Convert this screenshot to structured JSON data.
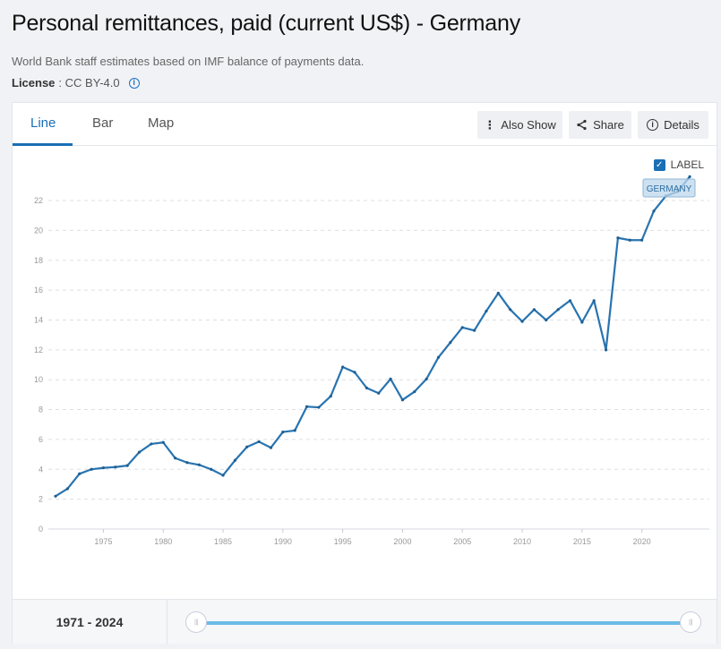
{
  "header": {
    "title": "Personal remittances, paid (current US$) - Germany",
    "source": "World Bank staff estimates based on IMF balance of payments data.",
    "license_label": "License",
    "license_sep": " : ",
    "license_value": "CC BY-4.0"
  },
  "tabs": [
    {
      "label": "Line",
      "active": true
    },
    {
      "label": "Bar",
      "active": false
    },
    {
      "label": "Map",
      "active": false
    }
  ],
  "toolbar": {
    "also_show": "Also Show",
    "share": "Share",
    "details": "Details"
  },
  "legend": {
    "checkbox_label": "LABEL",
    "checked": true,
    "series_tag": "GERMANY"
  },
  "footer": {
    "range_start": "1971",
    "range_sep": " - ",
    "range_end": "2024",
    "range_text": "1971 - 2024"
  },
  "colors": {
    "line": "#2874b0",
    "accent": "#1a6fb5",
    "slider": "#6cbbe6"
  },
  "chart_data": {
    "type": "line",
    "title": "Personal remittances, paid (current US$) - Germany",
    "xlabel": "",
    "ylabel": "",
    "ylim": [
      0,
      23
    ],
    "yticks": [
      0,
      2,
      4,
      6,
      8,
      10,
      12,
      14,
      16,
      18,
      20,
      22
    ],
    "xticks": [
      1975,
      1980,
      1985,
      1990,
      1995,
      2000,
      2005,
      2010,
      2015,
      2020
    ],
    "grid": true,
    "legend_position": "top-right",
    "x": [
      1971,
      1972,
      1973,
      1974,
      1975,
      1976,
      1977,
      1978,
      1979,
      1980,
      1981,
      1982,
      1983,
      1984,
      1985,
      1986,
      1987,
      1988,
      1989,
      1990,
      1991,
      1992,
      1993,
      1994,
      1995,
      1996,
      1997,
      1998,
      1999,
      2000,
      2001,
      2002,
      2003,
      2004,
      2005,
      2006,
      2007,
      2008,
      2009,
      2010,
      2011,
      2012,
      2013,
      2014,
      2015,
      2016,
      2017,
      2018,
      2019,
      2020,
      2021,
      2022,
      2023,
      2024
    ],
    "series": [
      {
        "name": "Germany",
        "values": [
          2.2,
          2.7,
          3.7,
          4.0,
          4.1,
          4.15,
          4.25,
          5.15,
          5.7,
          5.8,
          4.75,
          4.45,
          4.3,
          4.0,
          3.6,
          4.6,
          5.5,
          5.85,
          5.45,
          6.5,
          6.6,
          8.2,
          8.15,
          8.9,
          10.85,
          10.5,
          9.45,
          9.1,
          10.05,
          8.65,
          9.2,
          10.05,
          11.5,
          12.5,
          13.5,
          13.3,
          14.6,
          15.8,
          14.7,
          13.9,
          14.7,
          14.0,
          14.7,
          15.3,
          13.85,
          15.3,
          12.0,
          19.5,
          19.35,
          19.35,
          21.3,
          22.3,
          22.6,
          23.6
        ]
      }
    ]
  }
}
